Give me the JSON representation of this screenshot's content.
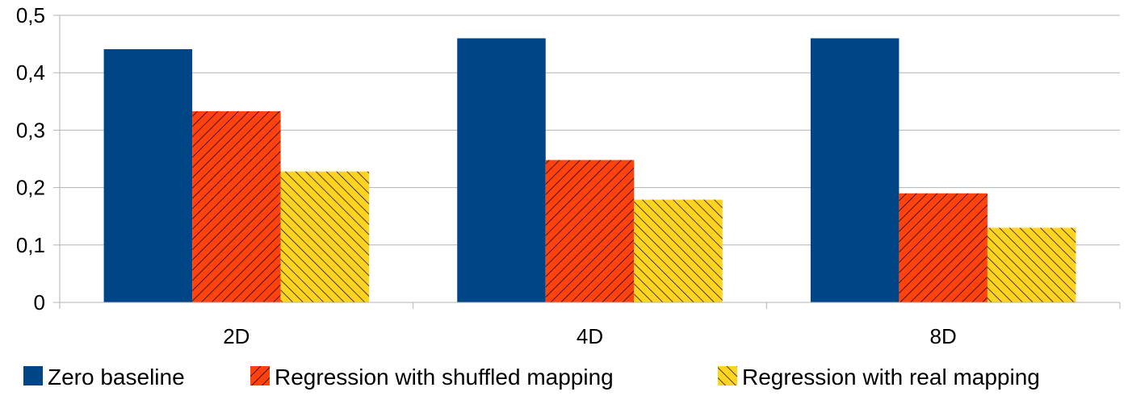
{
  "chart_data": {
    "type": "bar",
    "categories": [
      "2D",
      "4D",
      "8D"
    ],
    "series": [
      {
        "name": "Zero baseline",
        "values": [
          0.441,
          0.46,
          0.46
        ],
        "color": "#004586",
        "pattern": "solid"
      },
      {
        "name": "Regression with shuffled mapping",
        "values": [
          0.333,
          0.248,
          0.19
        ],
        "color": "#ff420e",
        "pattern": "diagonal-hatch-forward"
      },
      {
        "name": "Regression with real mapping",
        "values": [
          0.228,
          0.179,
          0.13
        ],
        "color": "#ffd320",
        "pattern": "diagonal-hatch-backward"
      }
    ],
    "ylim": [
      0,
      0.5
    ],
    "yticks": [
      "0",
      "0,1",
      "0,2",
      "0,3",
      "0,4",
      "0,5"
    ],
    "grid": true,
    "legend_position": "bottom"
  }
}
